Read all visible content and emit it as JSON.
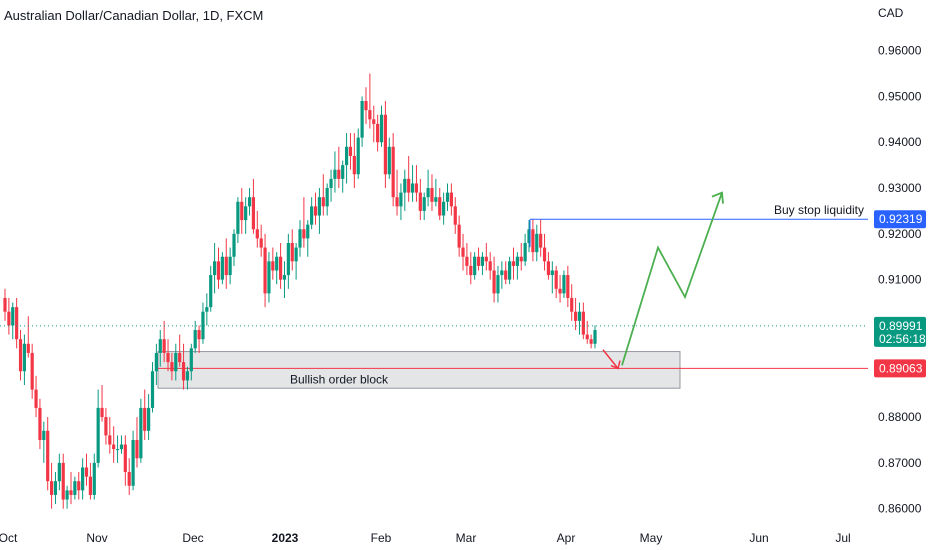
{
  "chart_data": {
    "type": "candlestick",
    "title": "Australian Dollar/Canadian Dollar, 1D, FXCM",
    "currency_label": "CAD",
    "ylim": [
      0.856,
      0.9645
    ],
    "y_ticks": [
      "0.96000",
      "0.95000",
      "0.94000",
      "0.93000",
      "0.92000",
      "0.91000",
      "0.88000",
      "0.87000",
      "0.86000"
    ],
    "x_ticks": [
      {
        "label": "Oct",
        "bold": false
      },
      {
        "label": "Nov",
        "bold": false
      },
      {
        "label": "Dec",
        "bold": false
      },
      {
        "label": "2023",
        "bold": true
      },
      {
        "label": "Feb",
        "bold": false
      },
      {
        "label": "Mar",
        "bold": false
      },
      {
        "label": "Apr",
        "bold": false
      },
      {
        "label": "May",
        "bold": false
      },
      {
        "label": "Jun",
        "bold": false
      },
      {
        "label": "Jul",
        "bold": false
      }
    ],
    "colors": {
      "up": "#089981",
      "down": "#f23645",
      "projection": "#4caf50",
      "buy_stop": "#2962ff",
      "order_block": "#f23645"
    },
    "candles_ohlc": [
      [
        0.906,
        0.908,
        0.901,
        0.903
      ],
      [
        0.903,
        0.906,
        0.898,
        0.9
      ],
      [
        0.9,
        0.905,
        0.897,
        0.904
      ],
      [
        0.904,
        0.906,
        0.895,
        0.897
      ],
      [
        0.897,
        0.899,
        0.888,
        0.89
      ],
      [
        0.89,
        0.898,
        0.887,
        0.896
      ],
      [
        0.896,
        0.902,
        0.893,
        0.894
      ],
      [
        0.894,
        0.896,
        0.884,
        0.886
      ],
      [
        0.886,
        0.889,
        0.88,
        0.882
      ],
      [
        0.882,
        0.884,
        0.873,
        0.875
      ],
      [
        0.875,
        0.879,
        0.87,
        0.877
      ],
      [
        0.877,
        0.88,
        0.864,
        0.866
      ],
      [
        0.866,
        0.87,
        0.86,
        0.863
      ],
      [
        0.863,
        0.868,
        0.861,
        0.866
      ],
      [
        0.866,
        0.872,
        0.864,
        0.87
      ],
      [
        0.87,
        0.872,
        0.86,
        0.862
      ],
      [
        0.862,
        0.865,
        0.86,
        0.864
      ],
      [
        0.864,
        0.868,
        0.861,
        0.863
      ],
      [
        0.863,
        0.867,
        0.862,
        0.866
      ],
      [
        0.866,
        0.868,
        0.862,
        0.864
      ],
      [
        0.864,
        0.871,
        0.862,
        0.869
      ],
      [
        0.869,
        0.872,
        0.865,
        0.867
      ],
      [
        0.867,
        0.87,
        0.862,
        0.863
      ],
      [
        0.863,
        0.872,
        0.862,
        0.87
      ],
      [
        0.87,
        0.886,
        0.869,
        0.882
      ],
      [
        0.882,
        0.887,
        0.879,
        0.88
      ],
      [
        0.88,
        0.882,
        0.874,
        0.876
      ],
      [
        0.876,
        0.88,
        0.872,
        0.874
      ],
      [
        0.874,
        0.878,
        0.87,
        0.873
      ],
      [
        0.873,
        0.876,
        0.87,
        0.873
      ],
      [
        0.873,
        0.876,
        0.872,
        0.874
      ],
      [
        0.874,
        0.876,
        0.865,
        0.868
      ],
      [
        0.868,
        0.871,
        0.863,
        0.865
      ],
      [
        0.865,
        0.877,
        0.864,
        0.875
      ],
      [
        0.875,
        0.88,
        0.869,
        0.871
      ],
      [
        0.871,
        0.884,
        0.87,
        0.882
      ],
      [
        0.882,
        0.886,
        0.875,
        0.877
      ],
      [
        0.877,
        0.885,
        0.875,
        0.882
      ],
      [
        0.882,
        0.892,
        0.881,
        0.89
      ],
      [
        0.89,
        0.896,
        0.887,
        0.894
      ],
      [
        0.894,
        0.899,
        0.891,
        0.897
      ],
      [
        0.897,
        0.901,
        0.892,
        0.894
      ],
      [
        0.894,
        0.897,
        0.89,
        0.892
      ],
      [
        0.892,
        0.894,
        0.888,
        0.89
      ],
      [
        0.89,
        0.896,
        0.888,
        0.894
      ],
      [
        0.894,
        0.898,
        0.891,
        0.892
      ],
      [
        0.892,
        0.896,
        0.886,
        0.888
      ],
      [
        0.888,
        0.891,
        0.886,
        0.89
      ],
      [
        0.89,
        0.896,
        0.888,
        0.895
      ],
      [
        0.895,
        0.901,
        0.894,
        0.899
      ],
      [
        0.899,
        0.9,
        0.894,
        0.897
      ],
      [
        0.897,
        0.905,
        0.896,
        0.903
      ],
      [
        0.903,
        0.907,
        0.9,
        0.904
      ],
      [
        0.904,
        0.913,
        0.903,
        0.911
      ],
      [
        0.911,
        0.918,
        0.907,
        0.914
      ],
      [
        0.914,
        0.917,
        0.908,
        0.91
      ],
      [
        0.91,
        0.916,
        0.909,
        0.915
      ],
      [
        0.915,
        0.919,
        0.908,
        0.911
      ],
      [
        0.911,
        0.917,
        0.909,
        0.915
      ],
      [
        0.915,
        0.921,
        0.913,
        0.92
      ],
      [
        0.92,
        0.928,
        0.918,
        0.927
      ],
      [
        0.927,
        0.93,
        0.92,
        0.923
      ],
      [
        0.923,
        0.928,
        0.92,
        0.926
      ],
      [
        0.926,
        0.93,
        0.924,
        0.928
      ],
      [
        0.928,
        0.932,
        0.92,
        0.921
      ],
      [
        0.921,
        0.925,
        0.917,
        0.919
      ],
      [
        0.919,
        0.922,
        0.915,
        0.917
      ],
      [
        0.917,
        0.92,
        0.904,
        0.907
      ],
      [
        0.907,
        0.916,
        0.905,
        0.914
      ],
      [
        0.914,
        0.917,
        0.91,
        0.912
      ],
      [
        0.912,
        0.916,
        0.909,
        0.915
      ],
      [
        0.915,
        0.918,
        0.908,
        0.91
      ],
      [
        0.91,
        0.914,
        0.906,
        0.911
      ],
      [
        0.911,
        0.92,
        0.908,
        0.918
      ],
      [
        0.918,
        0.921,
        0.912,
        0.914
      ],
      [
        0.914,
        0.918,
        0.91,
        0.917
      ],
      [
        0.917,
        0.923,
        0.915,
        0.921
      ],
      [
        0.921,
        0.928,
        0.917,
        0.919
      ],
      [
        0.919,
        0.923,
        0.915,
        0.922
      ],
      [
        0.922,
        0.928,
        0.921,
        0.926
      ],
      [
        0.926,
        0.929,
        0.922,
        0.924
      ],
      [
        0.924,
        0.93,
        0.92,
        0.928
      ],
      [
        0.928,
        0.933,
        0.924,
        0.926
      ],
      [
        0.926,
        0.931,
        0.924,
        0.93
      ],
      [
        0.93,
        0.934,
        0.927,
        0.932
      ],
      [
        0.932,
        0.938,
        0.929,
        0.934
      ],
      [
        0.934,
        0.939,
        0.93,
        0.932
      ],
      [
        0.932,
        0.936,
        0.929,
        0.935
      ],
      [
        0.935,
        0.942,
        0.931,
        0.939
      ],
      [
        0.939,
        0.942,
        0.934,
        0.937
      ],
      [
        0.937,
        0.942,
        0.93,
        0.933
      ],
      [
        0.933,
        0.943,
        0.932,
        0.941
      ],
      [
        0.941,
        0.95,
        0.939,
        0.949
      ],
      [
        0.949,
        0.952,
        0.944,
        0.947
      ],
      [
        0.947,
        0.955,
        0.943,
        0.945
      ],
      [
        0.945,
        0.948,
        0.94,
        0.944
      ],
      [
        0.944,
        0.946,
        0.938,
        0.94
      ],
      [
        0.94,
        0.948,
        0.939,
        0.946
      ],
      [
        0.946,
        0.949,
        0.93,
        0.933
      ],
      [
        0.933,
        0.941,
        0.932,
        0.939
      ],
      [
        0.939,
        0.942,
        0.926,
        0.928
      ],
      [
        0.928,
        0.934,
        0.924,
        0.926
      ],
      [
        0.926,
        0.931,
        0.923,
        0.929
      ],
      [
        0.929,
        0.934,
        0.925,
        0.932
      ],
      [
        0.932,
        0.937,
        0.927,
        0.929
      ],
      [
        0.929,
        0.935,
        0.927,
        0.931
      ],
      [
        0.931,
        0.935,
        0.927,
        0.929
      ],
      [
        0.929,
        0.932,
        0.923,
        0.925
      ],
      [
        0.925,
        0.929,
        0.923,
        0.928
      ],
      [
        0.928,
        0.934,
        0.926,
        0.93
      ],
      [
        0.93,
        0.933,
        0.925,
        0.927
      ],
      [
        0.927,
        0.932,
        0.926,
        0.928
      ],
      [
        0.928,
        0.93,
        0.923,
        0.924
      ],
      [
        0.924,
        0.929,
        0.922,
        0.927
      ],
      [
        0.927,
        0.931,
        0.925,
        0.929
      ],
      [
        0.929,
        0.931,
        0.924,
        0.926
      ],
      [
        0.926,
        0.928,
        0.92,
        0.922
      ],
      [
        0.922,
        0.924,
        0.915,
        0.917
      ],
      [
        0.917,
        0.92,
        0.912,
        0.915
      ],
      [
        0.915,
        0.918,
        0.911,
        0.913
      ],
      [
        0.913,
        0.916,
        0.909,
        0.911
      ],
      [
        0.911,
        0.916,
        0.91,
        0.915
      ],
      [
        0.915,
        0.917,
        0.912,
        0.913
      ],
      [
        0.913,
        0.916,
        0.911,
        0.915
      ],
      [
        0.915,
        0.918,
        0.912,
        0.914
      ],
      [
        0.914,
        0.916,
        0.91,
        0.912
      ],
      [
        0.912,
        0.915,
        0.905,
        0.907
      ],
      [
        0.907,
        0.913,
        0.905,
        0.911
      ],
      [
        0.911,
        0.914,
        0.908,
        0.912
      ],
      [
        0.912,
        0.914,
        0.909,
        0.91
      ],
      [
        0.91,
        0.915,
        0.909,
        0.914
      ],
      [
        0.914,
        0.917,
        0.91,
        0.913
      ],
      [
        0.913,
        0.916,
        0.91,
        0.915
      ],
      [
        0.915,
        0.918,
        0.912,
        0.914
      ],
      [
        0.914,
        0.92,
        0.913,
        0.918
      ],
      [
        0.918,
        0.923,
        0.916,
        0.921
      ],
      [
        0.921,
        0.9232,
        0.914,
        0.916
      ],
      [
        0.916,
        0.922,
        0.914,
        0.92
      ],
      [
        0.92,
        0.9232,
        0.915,
        0.917
      ],
      [
        0.917,
        0.92,
        0.912,
        0.914
      ],
      [
        0.914,
        0.916,
        0.91,
        0.911
      ],
      [
        0.911,
        0.914,
        0.907,
        0.912
      ],
      [
        0.912,
        0.913,
        0.906,
        0.908
      ],
      [
        0.908,
        0.911,
        0.905,
        0.907
      ],
      [
        0.907,
        0.912,
        0.906,
        0.911
      ],
      [
        0.911,
        0.913,
        0.904,
        0.906
      ],
      [
        0.906,
        0.909,
        0.901,
        0.903
      ],
      [
        0.903,
        0.906,
        0.899,
        0.901
      ],
      [
        0.901,
        0.905,
        0.898,
        0.903
      ],
      [
        0.903,
        0.905,
        0.897,
        0.898
      ],
      [
        0.898,
        0.901,
        0.896,
        0.897
      ],
      [
        0.897,
        0.898,
        0.895,
        0.896
      ],
      [
        0.896,
        0.9,
        0.895,
        0.899
      ]
    ],
    "annotations": {
      "buy_stop_label": "Buy stop liquidity",
      "buy_stop_price": 0.92319,
      "buy_stop_tag": "0.92319",
      "current_price": 0.89991,
      "current_price_tag": "0.89991",
      "countdown": "02:56:18",
      "order_block_label": "Bullish order block",
      "order_block_top": 0.8943,
      "order_block_bottom": 0.8863,
      "order_block_mid_price": 0.89063,
      "order_block_mid_tag": "0.89063",
      "drop_arrow": [
        [
          0.8947,
          0
        ],
        [
          0.8906,
          1
        ]
      ],
      "projection_path": [
        [
          0.8913,
          0
        ],
        [
          0.917,
          1
        ],
        [
          0.9062,
          2
        ],
        [
          0.929,
          3
        ]
      ]
    }
  }
}
